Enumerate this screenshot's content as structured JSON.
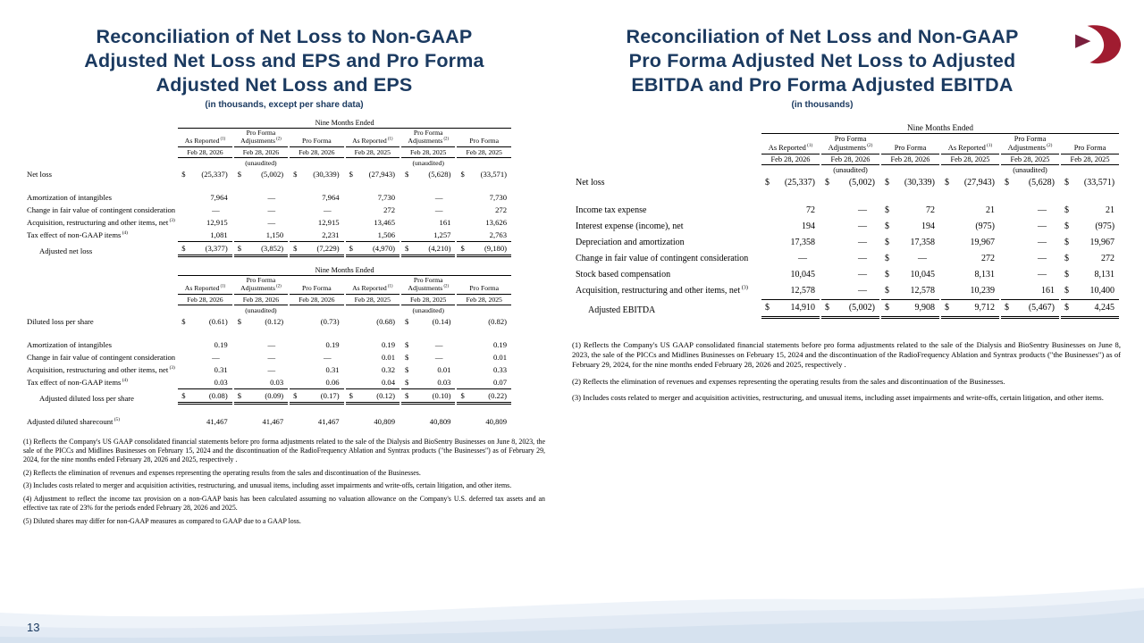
{
  "page": {
    "number": "13"
  },
  "left": {
    "title_lines": [
      "Reconciliation of Net Loss to Non-GAAP",
      "Adjusted Net Loss and EPS and Pro Forma",
      "Adjusted Net Loss and EPS"
    ],
    "subtitle": "(in thousands, except per share data)",
    "net_loss_table": {
      "group_header": "Nine Months Ended",
      "unaudited_label": "(unaudited)",
      "columns": [
        {
          "label": "As Reported",
          "sup": "(1)",
          "date": "Feb 28, 2026",
          "unaudited": false
        },
        {
          "label": "Pro Forma Adjustments",
          "sup": "(2)",
          "date": "Feb 28, 2026",
          "unaudited": true
        },
        {
          "label": "Pro Forma",
          "sup": "",
          "date": "Feb 28, 2026",
          "unaudited": false
        },
        {
          "label": "As Reported",
          "sup": "(1)",
          "date": "Feb 28, 2025",
          "unaudited": false
        },
        {
          "label": "Pro Forma Adjustments",
          "sup": "(2)",
          "date": "Feb 28, 2025",
          "unaudited": true
        },
        {
          "label": "Pro Forma",
          "sup": "",
          "date": "Feb 28, 2025",
          "unaudited": false
        }
      ],
      "rows": [
        {
          "type": "data",
          "label": "Net loss",
          "values": [
            "$ (25,337)",
            "$ (5,002)",
            "$ (30,339)",
            "$ (27,943)",
            "$ (5,628)",
            "$ (33,571)"
          ]
        },
        {
          "type": "spacer"
        },
        {
          "type": "data",
          "label": "Amortization of intangibles",
          "values": [
            "7,964",
            "—",
            "7,964",
            "7,730",
            "—",
            "7,730"
          ]
        },
        {
          "type": "data",
          "label": "Change in fair value of contingent consideration",
          "values": [
            "—",
            "—",
            "—",
            "272",
            "—",
            "272"
          ]
        },
        {
          "type": "data",
          "label": "Acquisition, restructuring and other items, net",
          "sup": "(3)",
          "values": [
            "12,915",
            "—",
            "12,915",
            "13,465",
            "161",
            "13,626"
          ]
        },
        {
          "type": "data",
          "label": "Tax effect of non-GAAP items",
          "sup": "(4)",
          "values": [
            "1,081",
            "1,150",
            "2,231",
            "1,506",
            "1,257",
            "2,763"
          ]
        },
        {
          "type": "total",
          "label": "Adjusted net loss",
          "indent": true,
          "values": [
            "$ (3,377)",
            "$ (3,852)",
            "$ (7,229)",
            "$ (4,970)",
            "$ (4,210)",
            "$ (9,180)"
          ]
        }
      ]
    },
    "eps_table": {
      "group_header": "Nine Months Ended",
      "unaudited_label": "(unaudited)",
      "columns": [
        {
          "label": "As Reported",
          "sup": "(1)",
          "date": "Feb 28, 2026",
          "unaudited": false
        },
        {
          "label": "Pro Forma Adjustments",
          "sup": "(2)",
          "date": "Feb 28, 2026",
          "unaudited": true
        },
        {
          "label": "Pro Forma",
          "sup": "",
          "date": "Feb 28, 2026",
          "unaudited": false
        },
        {
          "label": "As Reported",
          "sup": "(1)",
          "date": "Feb 28, 2025",
          "unaudited": false
        },
        {
          "label": "Pro Forma Adjustments",
          "sup": "(2)",
          "date": "Feb 28, 2025",
          "unaudited": true
        },
        {
          "label": "Pro Forma",
          "sup": "",
          "date": "Feb 28, 2025",
          "unaudited": false
        }
      ],
      "rows": [
        {
          "type": "data",
          "label": "Diluted loss per share",
          "values": [
            "$ (0.61)",
            "$ (0.12)",
            "(0.73)",
            "(0.68)",
            "$ (0.14)",
            "(0.82)"
          ]
        },
        {
          "type": "spacer"
        },
        {
          "type": "data",
          "label": "Amortization of intangibles",
          "values": [
            "0.19",
            "—",
            "0.19",
            "0.19",
            "$ —",
            "0.19"
          ]
        },
        {
          "type": "data",
          "label": "Change in fair value of contingent consideration",
          "values": [
            "—",
            "—",
            "—",
            "0.01",
            "$ —",
            "0.01"
          ]
        },
        {
          "type": "data",
          "label": "Acquisition, restructuring and other items, net",
          "sup": "(3)",
          "values": [
            "0.31",
            "—",
            "0.31",
            "0.32",
            "$ 0.01",
            "0.33"
          ]
        },
        {
          "type": "data",
          "label": "Tax effect of non-GAAP items",
          "sup": "(4)",
          "values": [
            "0.03",
            "0.03",
            "0.06",
            "0.04",
            "$ 0.03",
            "0.07"
          ]
        },
        {
          "type": "total",
          "label": "Adjusted diluted loss per share",
          "indent": true,
          "values": [
            "$ (0.08)",
            "$ (0.09)",
            "$ (0.17)",
            "$ (0.12)",
            "$ (0.10)",
            "$ (0.22)"
          ]
        },
        {
          "type": "spacer"
        },
        {
          "type": "data",
          "label": "Adjusted diluted sharecount",
          "sup": "(5)",
          "values": [
            "41,467",
            "41,467",
            "41,467",
            "40,809",
            "40,809",
            "40,809"
          ]
        }
      ]
    },
    "footnotes": [
      "(1)  Reflects the Company's US GAAP consolidated financial statements before pro forma adjustments related to the sale of the Dialysis and BioSentry Businesses on June 8, 2023, the sale of the PICCs and Midlines Businesses on February 15, 2024 and the discontinuation of the RadioFrequency Ablation and Syntrax products (\"the Businesses\") as of February 29, 2024, for the nine months ended February 28, 2026 and 2025, respectively .",
      "(2)  Reflects the elimination of revenues and expenses representing the operating results from the sales and discontinuation of the Businesses.",
      "(3)  Includes costs related to merger and acquisition activities, restructuring, and unusual items, including asset impairments and write-offs, certain litigation, and other items.",
      "(4)  Adjustment to reflect the income tax provision on a non-GAAP basis has been calculated assuming no valuation allowance on the Company's U.S. deferred tax assets and an effective tax rate of 23% for the periods ended February 28, 2026 and 2025.",
      "(5)  Diluted shares may differ for non-GAAP measures as compared to GAAP due to a GAAP loss."
    ]
  },
  "right": {
    "title_lines": [
      "Reconciliation of Net Loss and Non-GAAP",
      "Pro Forma Adjusted Net Loss to Adjusted",
      "EBITDA and Pro Forma Adjusted EBITDA"
    ],
    "subtitle": "(in thousands)",
    "logo_color_primary": "#a01c30",
    "logo_color_secondary": "#7a1f3d",
    "ebitda_table": {
      "group_header": "Nine Months Ended",
      "unaudited_label": "(unaudited)",
      "columns": [
        {
          "label": "As Reported",
          "sup": "(1)",
          "date": "Feb 28, 2026",
          "unaudited": false
        },
        {
          "label": "Pro Forma Adjustments",
          "sup": "(2)",
          "date": "Feb 28, 2026",
          "unaudited": true
        },
        {
          "label": "Pro Forma",
          "sup": "",
          "date": "Feb 28, 2026",
          "unaudited": false
        },
        {
          "label": "As Reported",
          "sup": "(1)",
          "date": "Feb 28, 2025",
          "unaudited": false
        },
        {
          "label": "Pro Forma Adjustments",
          "sup": "(2)",
          "date": "Feb 28, 2025",
          "unaudited": true
        },
        {
          "label": "Pro Forma",
          "sup": "",
          "date": "Feb 28, 2025",
          "unaudited": false
        }
      ],
      "rows": [
        {
          "type": "data",
          "label": "Net loss",
          "values": [
            "$ (25,337)",
            "$ (5,002)",
            "$ (30,339)",
            "$ (27,943)",
            "$ (5,628)",
            "$ (33,571)"
          ]
        },
        {
          "type": "spacer"
        },
        {
          "type": "data",
          "label": "Income tax expense",
          "values": [
            "72",
            "—",
            "$ 72",
            "21",
            "—",
            "$ 21"
          ]
        },
        {
          "type": "data",
          "label": "Interest expense (income), net",
          "values": [
            "194",
            "—",
            "$ 194",
            "(975)",
            "—",
            "$ (975)"
          ]
        },
        {
          "type": "data",
          "label": "Depreciation and amortization",
          "values": [
            "17,358",
            "—",
            "$ 17,358",
            "19,967",
            "—",
            "$ 19,967"
          ]
        },
        {
          "type": "data",
          "label": "Change in fair value of contingent consideration",
          "values": [
            "—",
            "—",
            "$ —",
            "272",
            "—",
            "$ 272"
          ]
        },
        {
          "type": "data",
          "label": "Stock based compensation",
          "values": [
            "10,045",
            "—",
            "$ 10,045",
            "8,131",
            "—",
            "$ 8,131"
          ]
        },
        {
          "type": "data",
          "label": "Acquisition, restructuring and other items, net",
          "sup": "(3)",
          "values": [
            "12,578",
            "—",
            "$ 12,578",
            "10,239",
            "161",
            "$ 10,400"
          ]
        },
        {
          "type": "total",
          "label": "Adjusted EBITDA",
          "indent": true,
          "values": [
            "$ 14,910",
            "$ (5,002)",
            "$ 9,908",
            "$ 9,712",
            "$ (5,467)",
            "$ 4,245"
          ]
        }
      ]
    },
    "footnotes": [
      "(1)  Reflects the Company's US GAAP consolidated financial statements before pro forma adjustments related to the sale of the Dialysis and BioSentry Businesses on June 8, 2023, the sale of the PICCs and Midlines Businesses on February 15, 2024 and the discontinuation of the RadioFrequency Ablation and Syntrax products (\"the Businesses\") as of February 29, 2024, for the nine months ended February 28, 2026 and 2025, respectively .",
      "(2)  Reflects the elimination of revenues and expenses representing the operating results from the sales and discontinuation of the Businesses.",
      "(3)  Includes costs related to merger and acquisition activities, restructuring, and unusual items, including asset impairments and write-offs, certain litigation, and other items."
    ]
  }
}
